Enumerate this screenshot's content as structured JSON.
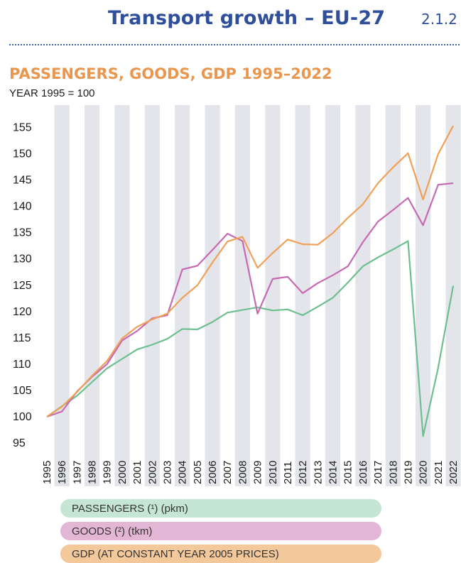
{
  "header": {
    "title": "Transport growth – EU-27",
    "code": "2.1.2"
  },
  "chart_data": {
    "type": "line",
    "title": "PASSENGERS, GOODS, GDP 1995–2022",
    "subtitle": "YEAR 1995 = 100",
    "x": [
      "1995",
      "1996",
      "1997",
      "1998",
      "1999",
      "2000",
      "2001",
      "2002",
      "2003",
      "2004",
      "2005",
      "2006",
      "2007",
      "2008",
      "2009",
      "2010",
      "2011",
      "2012",
      "2013",
      "2014",
      "2015",
      "2016",
      "2017",
      "2018",
      "2019",
      "2020",
      "2021",
      "2022"
    ],
    "y_ticks": [
      95,
      100,
      105,
      110,
      115,
      120,
      125,
      130,
      135,
      140,
      145,
      150,
      155
    ],
    "ylim": [
      92,
      159
    ],
    "grid": "alternating vertical bands",
    "legend_position": "bottom",
    "series": [
      {
        "name": "PASSENGERS (¹) (pkm)",
        "color": "#6cc090",
        "legend_fill": "#c5e6d2",
        "values": [
          100,
          102,
          104,
          106.6,
          109.2,
          111,
          112.8,
          113.7,
          114.8,
          116.7,
          116.6,
          118,
          119.8,
          120.3,
          120.8,
          120.2,
          120.4,
          119.3,
          120.9,
          122.6,
          125.5,
          128.6,
          130.3,
          131.8,
          133.4,
          96.3,
          109.3,
          124.9
        ]
      },
      {
        "name": "GOODS (²) (tkm)",
        "color": "#c66ab3",
        "legend_fill": "#e4b6d6",
        "values": [
          100,
          101,
          104.8,
          107.6,
          110,
          114.5,
          116.3,
          118.7,
          119.3,
          128,
          128.7,
          131.7,
          134.8,
          133.4,
          119.6,
          126.2,
          126.6,
          123.5,
          125.4,
          126.9,
          128.6,
          133.2,
          137.1,
          139.3,
          141.6,
          136.4,
          144.1,
          144.4
        ]
      },
      {
        "name": "GDP (AT CONSTANT YEAR 2005 PRICES)",
        "color": "#f0a057",
        "legend_fill": "#f3c89a",
        "values": [
          100,
          101.9,
          104.7,
          107.8,
          110.6,
          114.9,
          117.1,
          118.5,
          119.6,
          122.6,
          125,
          129.3,
          133.3,
          134.2,
          128.3,
          131.1,
          133.7,
          132.8,
          132.7,
          134.9,
          137.8,
          140.4,
          144.4,
          147.4,
          150.1,
          141.3,
          149.9,
          155.3
        ]
      }
    ]
  }
}
